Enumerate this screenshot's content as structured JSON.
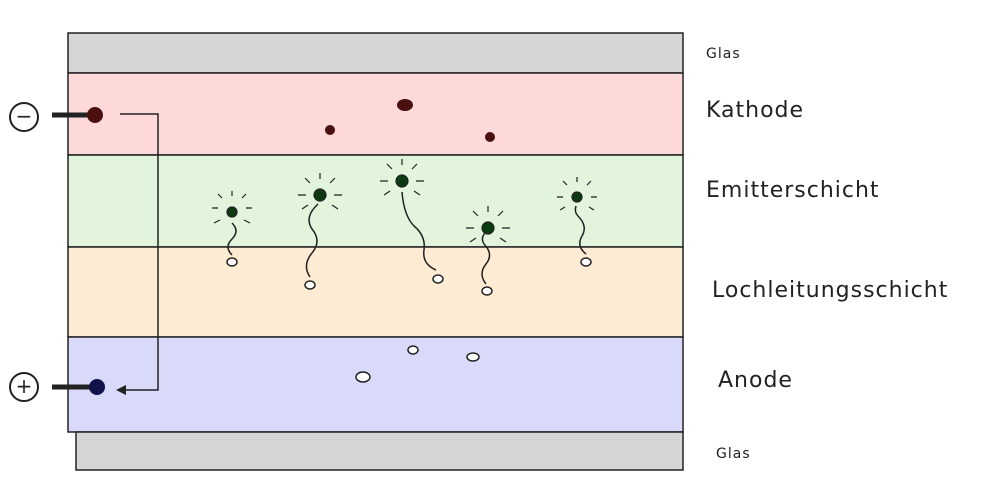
{
  "layers": [
    {
      "label": "Glas"
    },
    {
      "label": "Kathode"
    },
    {
      "label": "Emitterschicht"
    },
    {
      "label": "Lochleitungsschicht"
    },
    {
      "label": "Anode"
    },
    {
      "label": "Glas"
    }
  ],
  "terminals": {
    "negative": "−",
    "positive": "+"
  }
}
